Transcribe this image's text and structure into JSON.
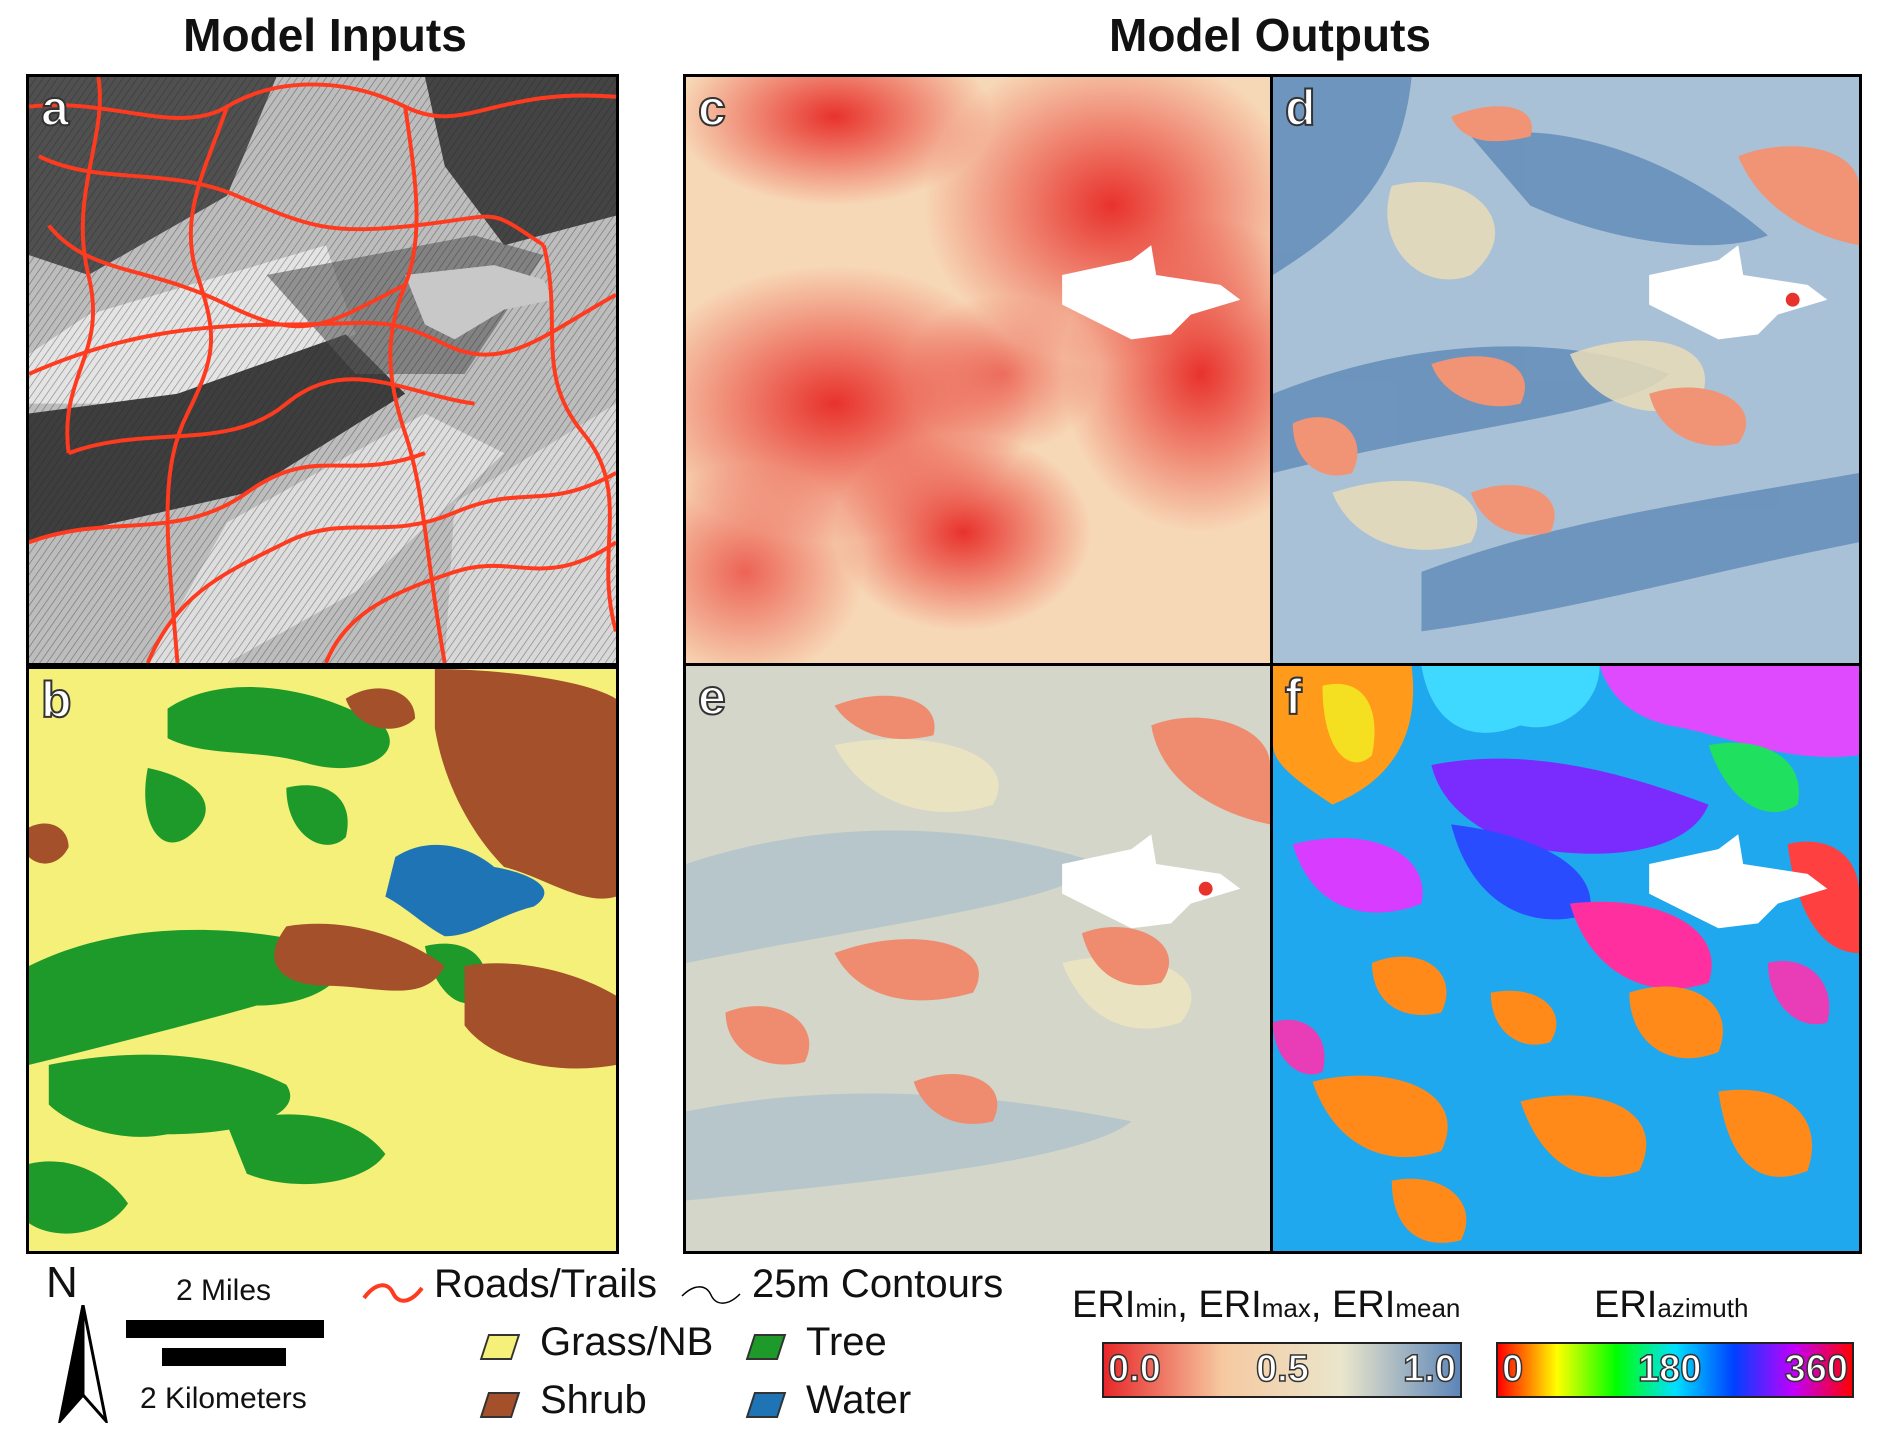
{
  "headers": {
    "inputs": "Model Inputs",
    "outputs": "Model Outputs"
  },
  "panels": {
    "a": "a",
    "b": "b",
    "c": "c",
    "d": "d",
    "e": "e",
    "f": "f"
  },
  "legend": {
    "north": "N",
    "scale_miles": "2 Miles",
    "scale_km": "2 Kilometers",
    "roads": "Roads/Trails",
    "contours": "25m Contours",
    "grass": "Grass/NB",
    "tree": "Tree",
    "shrub": "Shrub",
    "water": "Water",
    "colors": {
      "road": "#ff3b1f",
      "grass": "#f4f07a",
      "tree": "#1e9a2a",
      "shrub": "#a4502a",
      "water": "#1f74b5"
    }
  },
  "colorbar_eri": {
    "title_parts": [
      "ERI",
      "min",
      ", ERI",
      "max",
      ", ERI",
      "mean"
    ],
    "ticks": [
      "0.0",
      "0.5",
      "1.0"
    ],
    "colors": [
      "#e8282a",
      "#f6c9a0",
      "#eae6cc",
      "#5d86b8"
    ]
  },
  "colorbar_azimuth": {
    "title": "ERI",
    "title_sub": "azimuth",
    "ticks": [
      "0",
      "180",
      "360"
    ],
    "colors": [
      "#ff0000",
      "#ffff00",
      "#00ff00",
      "#00e0ff",
      "#0040ff",
      "#c000ff",
      "#ff0000"
    ]
  }
}
